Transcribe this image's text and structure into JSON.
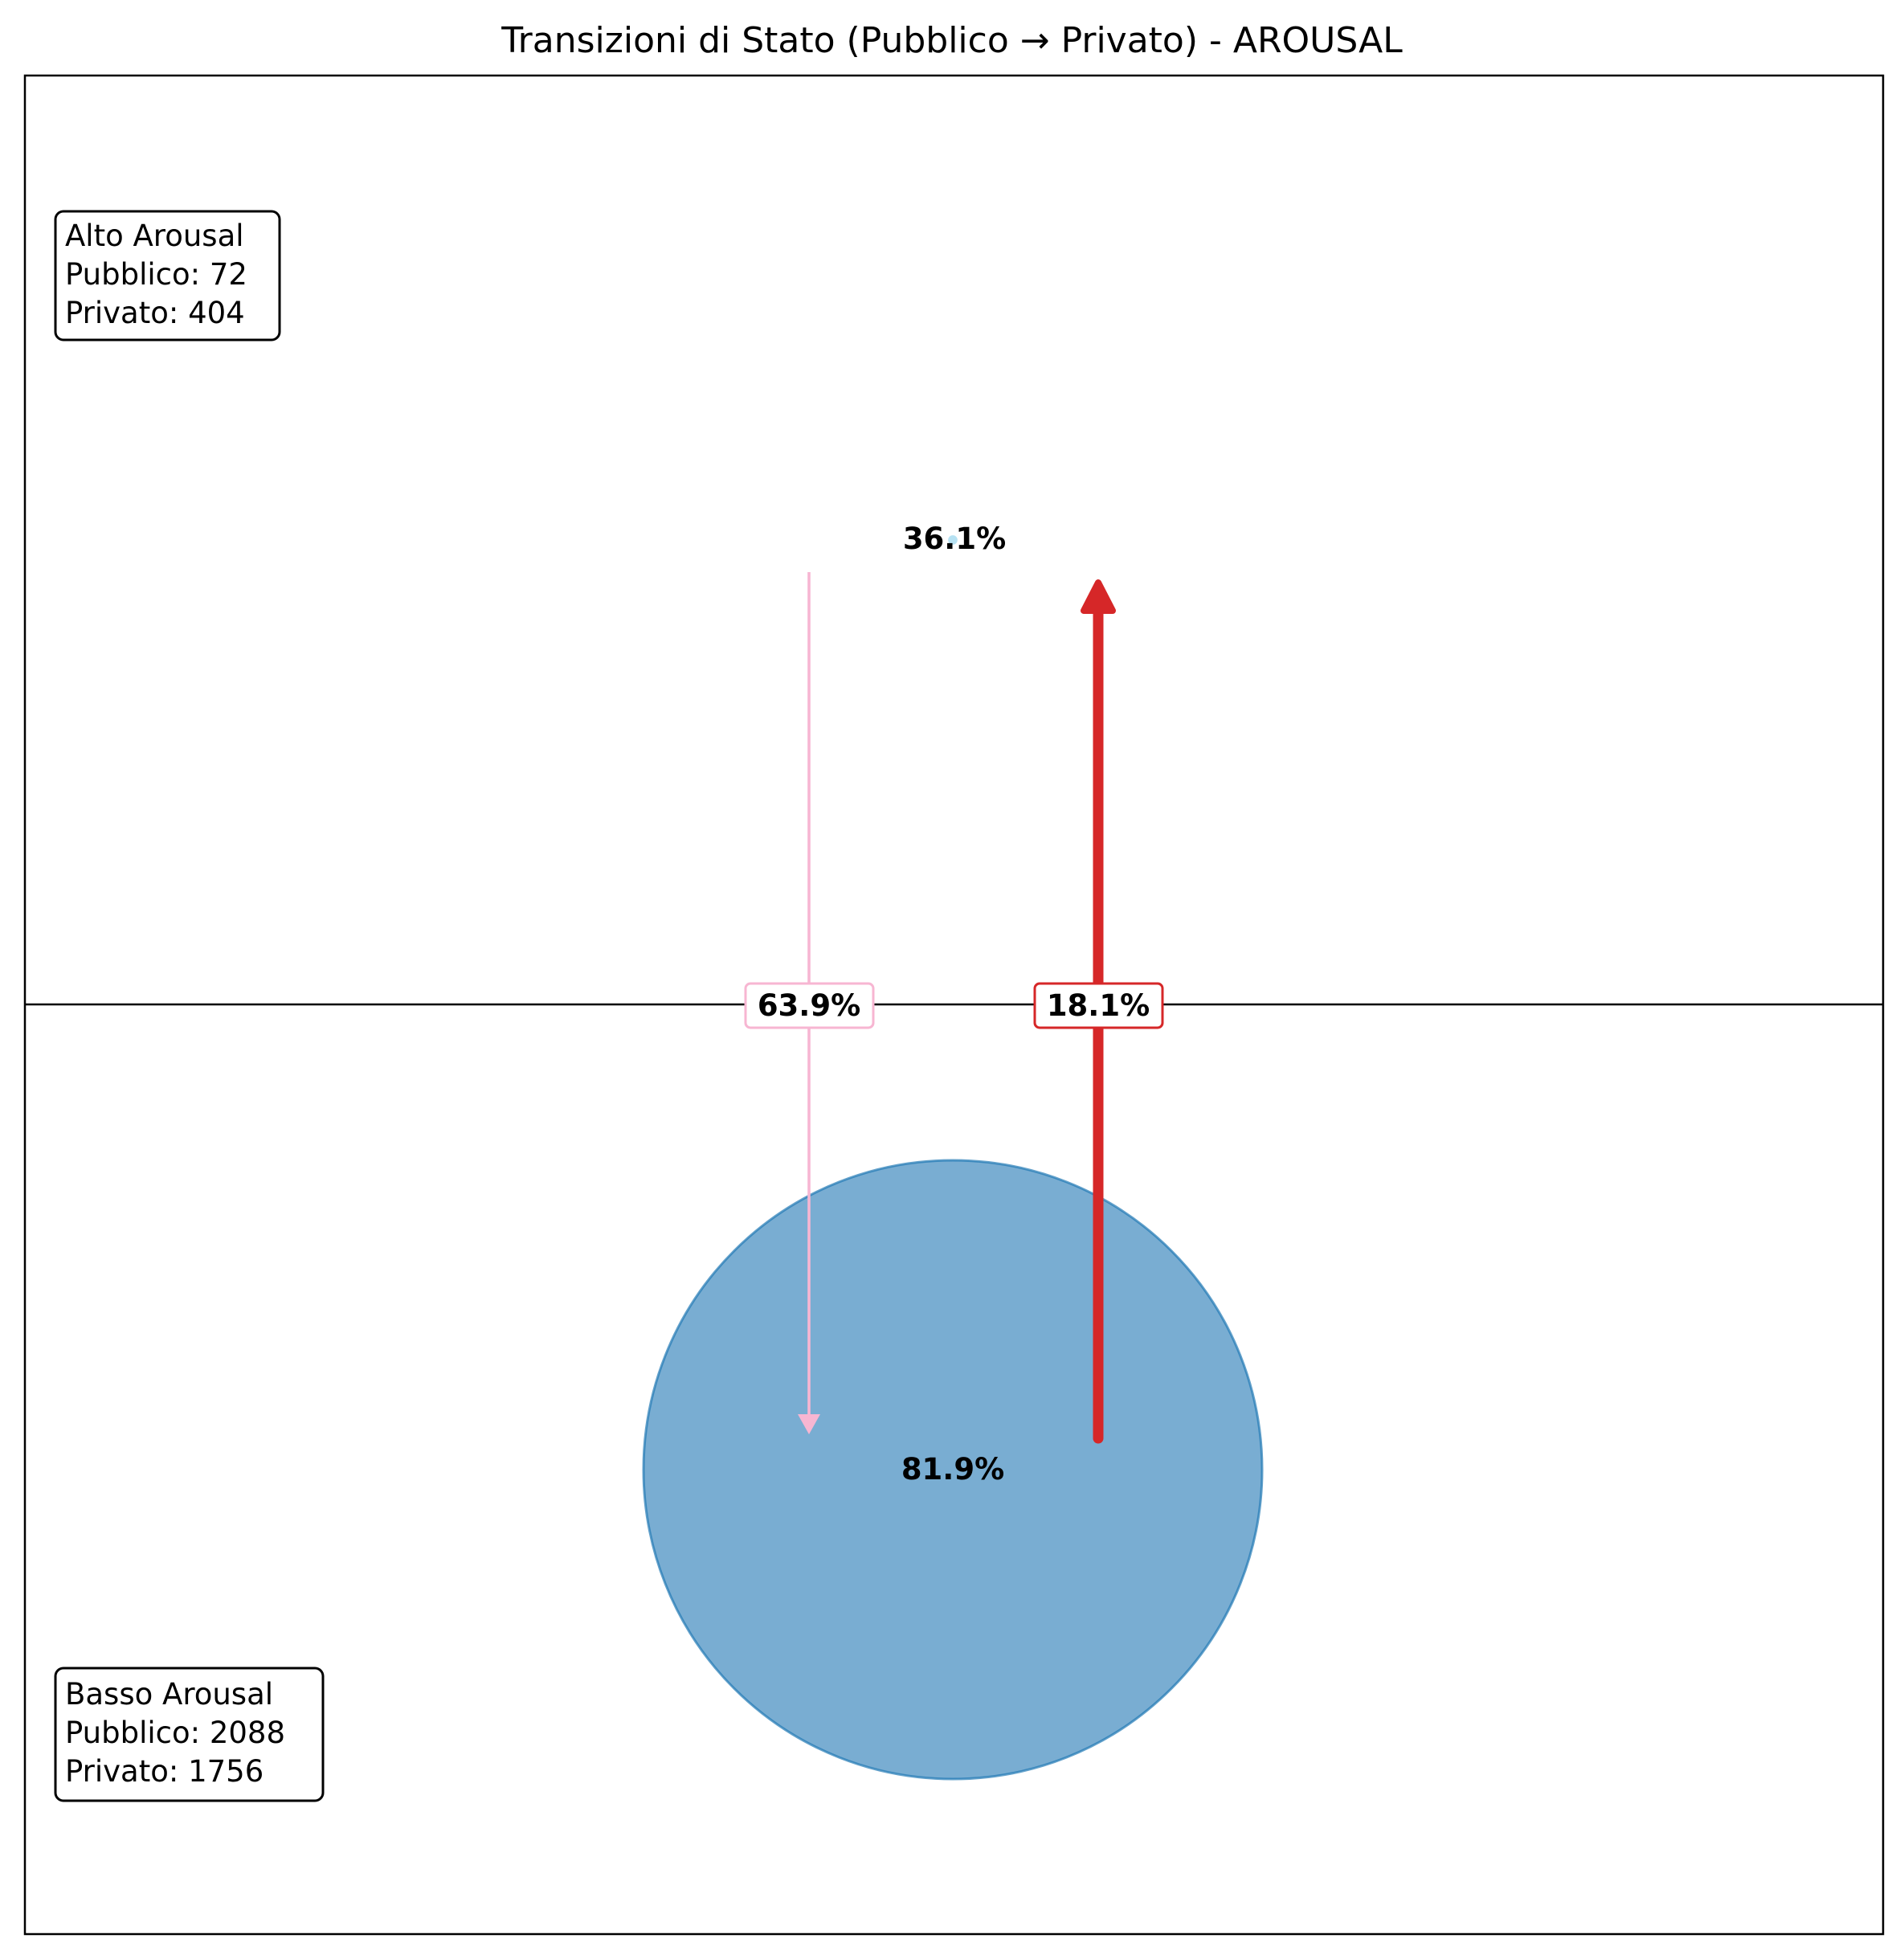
{
  "chart_data": {
    "type": "diagram",
    "title": "Transizioni di Stato (Pubblico → Privato) - AROUSAL",
    "states": {
      "alto": {
        "name": "Alto Arousal",
        "pubblico_label": "Pubblico: 72",
        "privato_label": "Privato: 404",
        "pubblico": 72,
        "privato": 404,
        "self_transition": 36.1,
        "self_label": "36.1%",
        "color": "#87ceeb"
      },
      "basso": {
        "name": "Basso Arousal",
        "pubblico_label": "Pubblico: 2088",
        "privato_label": "Privato: 1756",
        "pubblico": 2088,
        "privato": 1756,
        "self_transition": 81.9,
        "self_label": "81.9%",
        "color": "#1f77b4"
      }
    },
    "transitions": [
      {
        "from": "Alto Arousal",
        "to": "Basso Arousal",
        "value": 63.9,
        "label": "63.9%",
        "color": "#f7b6d2"
      },
      {
        "from": "Basso Arousal",
        "to": "Alto Arousal",
        "value": 18.1,
        "label": "18.1%",
        "color": "#d62728"
      }
    ],
    "grid": false,
    "divider": "horizontal"
  }
}
